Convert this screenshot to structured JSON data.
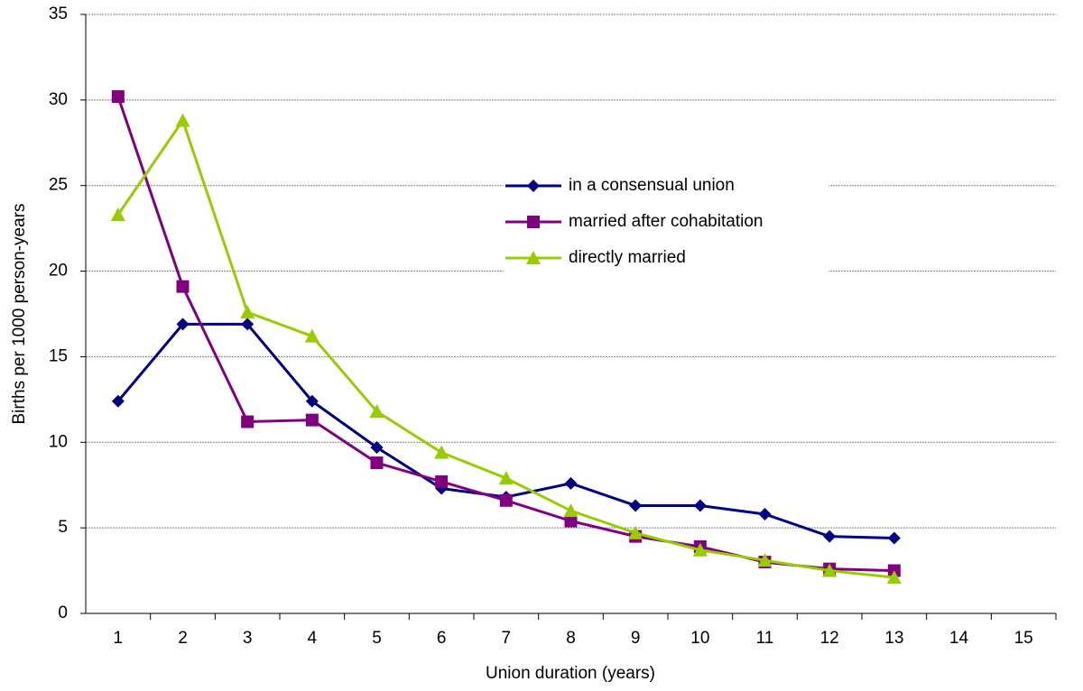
{
  "chart_data": {
    "type": "line",
    "x_label": "Union duration (years)",
    "y_label": "Births per 1000 person-years",
    "categories": [
      "1",
      "2",
      "3",
      "4",
      "5",
      "6",
      "7",
      "8",
      "9",
      "10",
      "11",
      "12",
      "13",
      "14",
      "15"
    ],
    "series": [
      {
        "name": "in a consensual union",
        "color": "#000080",
        "marker": "diamond",
        "values": [
          12.4,
          16.9,
          16.9,
          12.4,
          9.7,
          7.3,
          6.8,
          7.6,
          6.3,
          6.3,
          5.8,
          4.5,
          4.4,
          null,
          null
        ]
      },
      {
        "name": "married after cohabitation",
        "color": "#800080",
        "marker": "square",
        "values": [
          30.2,
          19.1,
          11.2,
          11.3,
          8.8,
          7.7,
          6.6,
          5.4,
          4.5,
          3.9,
          3.0,
          2.6,
          2.5,
          null,
          null
        ]
      },
      {
        "name": "directly married",
        "color": "#99cc00",
        "marker": "triangle",
        "values": [
          23.3,
          28.8,
          17.6,
          16.2,
          11.8,
          9.4,
          7.9,
          6.0,
          4.7,
          3.7,
          3.1,
          2.5,
          2.1,
          null,
          null
        ]
      }
    ],
    "ylim": [
      0,
      35
    ],
    "yticks": [
      0,
      5,
      10,
      15,
      20,
      25,
      30,
      35
    ],
    "grid": true
  }
}
